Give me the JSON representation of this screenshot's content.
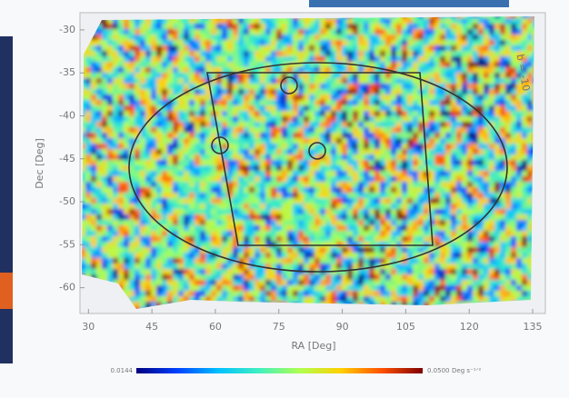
{
  "chart_data": {
    "type": "heatmap",
    "xlabel": "RA [Deg]",
    "ylabel": "Dec [Deg]",
    "xlim": [
      28,
      138
    ],
    "ylim": [
      -63,
      -28
    ],
    "xticks": [
      30,
      45,
      60,
      75,
      90,
      105,
      120,
      135
    ],
    "yticks": [
      -30,
      -35,
      -40,
      -45,
      -50,
      -55,
      -60
    ],
    "annotation": "b = -10",
    "colorbar": {
      "min_label": "0.0144",
      "max_label": "0.0500",
      "unit": "Deg s⁻¹ᐟ²",
      "colors": [
        "#00007f",
        "#0040ff",
        "#00c0ff",
        "#40f0c0",
        "#b0ff50",
        "#ffd000",
        "#ff5000",
        "#7f0000"
      ]
    }
  }
}
